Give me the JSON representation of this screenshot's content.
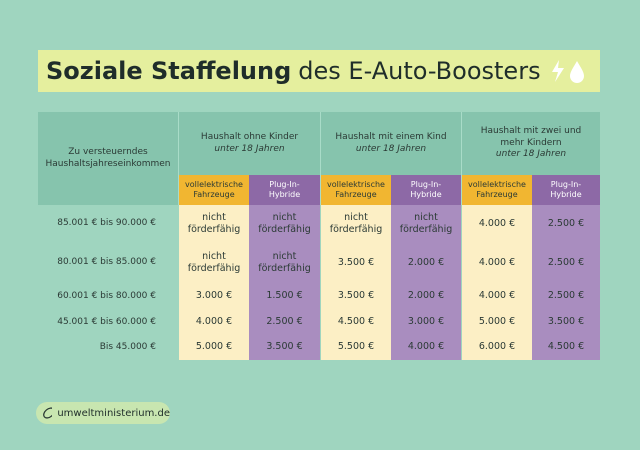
{
  "title": {
    "bold": "Soziale Staffelung",
    "rest": "des E-Auto-Boosters"
  },
  "header": {
    "income_label": "Zu versteuerndes Haushaltsjahreseinkommen",
    "groups": [
      {
        "title": "Haushalt ohne Kinder",
        "subtitle": "unter 18 Jahren"
      },
      {
        "title": "Haushalt mit einem Kind",
        "subtitle": "unter 18 Jahren"
      },
      {
        "title": "Haushalt mit zwei und mehr Kindern",
        "subtitle": "unter 18 Jahren"
      }
    ],
    "subheaders": [
      "vollelektrische Fahrzeuge",
      "Plug-In-Hybride",
      "vollelektrische Fahrzeuge",
      "Plug-In-Hybride",
      "vollelektrische Fahrzeuge",
      "Plug-In-Hybride"
    ]
  },
  "rows": [
    {
      "income": "85.001 € bis 90.000 €",
      "cells": [
        "nicht förderfähig",
        "nicht förderfähig",
        "nicht förderfähig",
        "nicht förderfähig",
        "4.000 €",
        "2.500 €"
      ]
    },
    {
      "income": "80.001 € bis 85.000 €",
      "cells": [
        "nicht förderfähig",
        "nicht förderfähig",
        "3.500 €",
        "2.000 €",
        "4.000 €",
        "2.500 €"
      ]
    },
    {
      "income": "60.001 € bis 80.000 €",
      "cells": [
        "3.000 €",
        "1.500 €",
        "3.500 €",
        "2.000 €",
        "4.000 €",
        "2.500 €"
      ]
    },
    {
      "income": "45.001 € bis 60.000 €",
      "cells": [
        "4.000 €",
        "2.500 €",
        "4.500 €",
        "3.000 €",
        "5.000 €",
        "3.500 €"
      ]
    },
    {
      "income": "Bis 45.000 €",
      "cells": [
        "5.000 €",
        "3.500 €",
        "5.500 €",
        "4.000 €",
        "6.000 €",
        "4.500 €"
      ]
    }
  ],
  "footer": "umweltministerium.de"
}
